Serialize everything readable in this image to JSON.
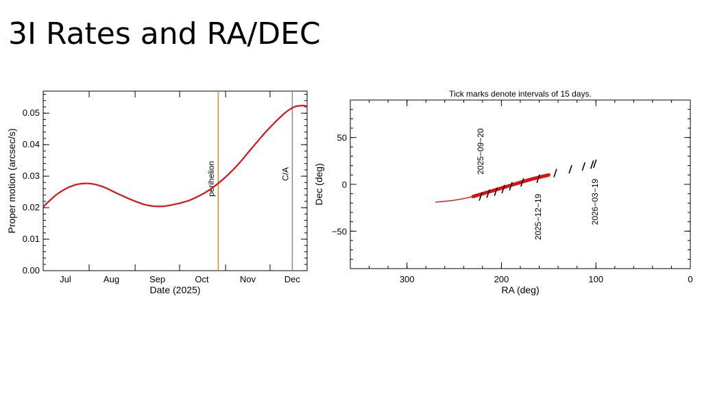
{
  "slide": {
    "title": "3I Rates and RA/DEC"
  },
  "chart_data": [
    {
      "type": "line",
      "xlabel": "Date (2025)",
      "ylabel": "Proper motion (arcsec/s)",
      "x_tick_labels": [
        "Jul",
        "Aug",
        "Sep",
        "Oct",
        "Nov",
        "Dec"
      ],
      "x_tick_days": [
        15,
        46,
        77,
        107,
        138,
        168
      ],
      "xlim_days": [
        0,
        178
      ],
      "ylim": [
        0,
        0.057
      ],
      "y_tick_values": [
        0,
        0.01,
        0.02,
        0.03,
        0.04,
        0.05
      ],
      "y_tick_labels": [
        "0.00",
        "0.01",
        "0.02",
        "0.03",
        "0.04",
        "0.05"
      ],
      "series": [
        {
          "color": "#dd1111",
          "x_days": [
            0,
            10,
            20,
            30,
            40,
            50,
            60,
            70,
            80,
            90,
            95,
            100,
            110,
            120,
            130,
            140,
            150,
            160,
            165,
            170,
            175,
            178
          ],
          "values": [
            0.0203,
            0.0245,
            0.027,
            0.0277,
            0.0267,
            0.0245,
            0.0224,
            0.0208,
            0.0204,
            0.0212,
            0.0218,
            0.0226,
            0.025,
            0.0285,
            0.033,
            0.0385,
            0.044,
            0.0488,
            0.0508,
            0.0521,
            0.0524,
            0.0522
          ]
        }
      ],
      "vlines": [
        {
          "label": "perihelion",
          "x_day": 118,
          "color": "#e07b39"
        },
        {
          "label": "C/A",
          "x_day": 168,
          "color": "#8e6cc9"
        }
      ]
    },
    {
      "type": "line",
      "title": "Tick marks denote intervals of 15 days.",
      "xlabel": "RA (deg)",
      "ylabel": "Dec (deg)",
      "xlim": [
        360,
        0
      ],
      "ylim": [
        -90,
        90
      ],
      "x_tick_values": [
        300,
        200,
        100,
        0
      ],
      "x_tick_labels": [
        "300",
        "200",
        "100",
        "0"
      ],
      "y_tick_values": [
        50,
        0,
        -50
      ],
      "y_tick_labels": [
        "50",
        "0",
        "−50"
      ],
      "path_ra": [
        270,
        250,
        230,
        210,
        190,
        170,
        150
      ],
      "path_dec": [
        -19,
        -17,
        -13,
        -7,
        -1,
        5,
        10
      ],
      "path_color": "#dd1111",
      "interval_marks": [
        {
          "ra": 222,
          "dec": -13
        },
        {
          "ra": 214,
          "dec": -10
        },
        {
          "ra": 206,
          "dec": -8
        },
        {
          "ra": 198,
          "dec": -5
        },
        {
          "ra": 190,
          "dec": -2
        },
        {
          "ra": 178,
          "dec": 2
        },
        {
          "ra": 161,
          "dec": 6
        },
        {
          "ra": 143,
          "dec": 12
        },
        {
          "ra": 127,
          "dec": 16
        },
        {
          "ra": 113,
          "dec": 19
        },
        {
          "ra": 104,
          "dec": 21
        },
        {
          "ra": 101,
          "dec": 22
        }
      ],
      "date_labels": [
        {
          "text": "2025−09−20",
          "ra": 222,
          "dec": -13
        },
        {
          "text": "2025−12−19",
          "ra": 161,
          "dec": 6
        },
        {
          "text": "2026−03−19",
          "ra": 101,
          "dec": 22
        }
      ]
    }
  ]
}
